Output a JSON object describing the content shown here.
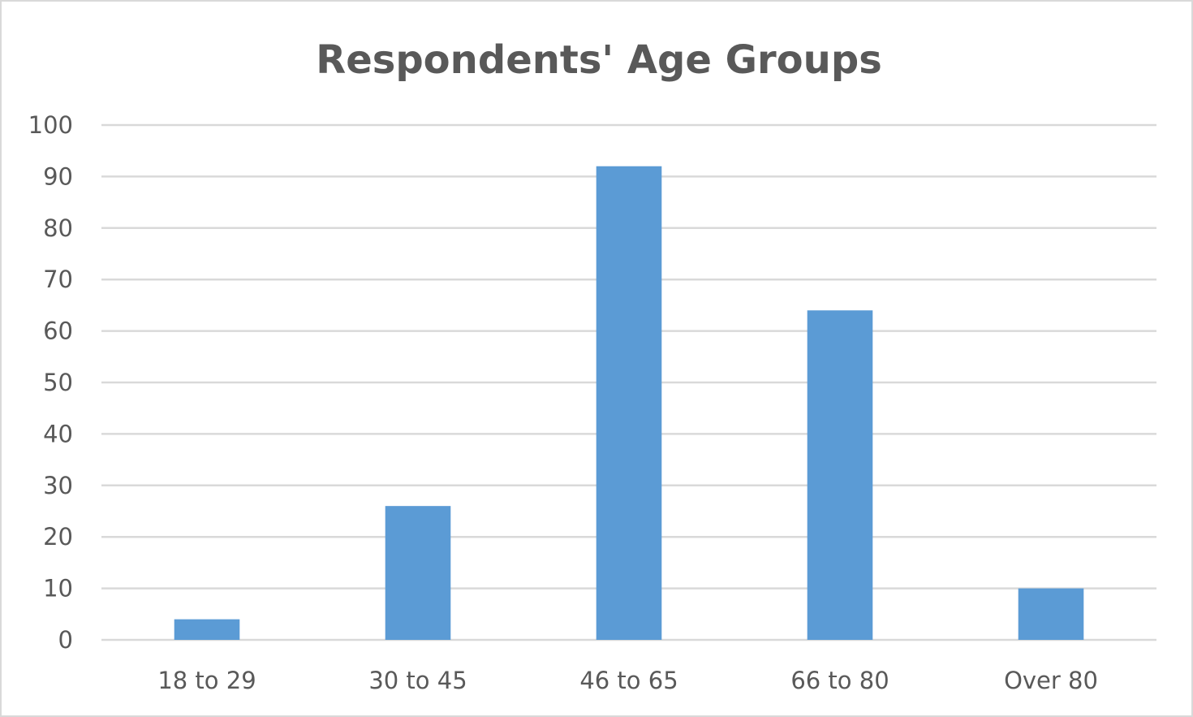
{
  "chart_data": {
    "type": "bar",
    "title": "Respondents' Age Groups",
    "categories": [
      "18 to 29",
      "30 to 45",
      "46 to 65",
      "66 to 80",
      "Over 80"
    ],
    "values": [
      4,
      26,
      92,
      64,
      10
    ],
    "ylim": [
      0,
      100
    ],
    "yticks": [
      "0",
      "10",
      "20",
      "30",
      "40",
      "50",
      "60",
      "70",
      "80",
      "90",
      "100"
    ],
    "xlabel": "",
    "ylabel": "",
    "grid": true,
    "legend": "none",
    "bar_color": "#5b9bd5",
    "grid_color": "#d9d9d9",
    "text_color": "#595959"
  }
}
